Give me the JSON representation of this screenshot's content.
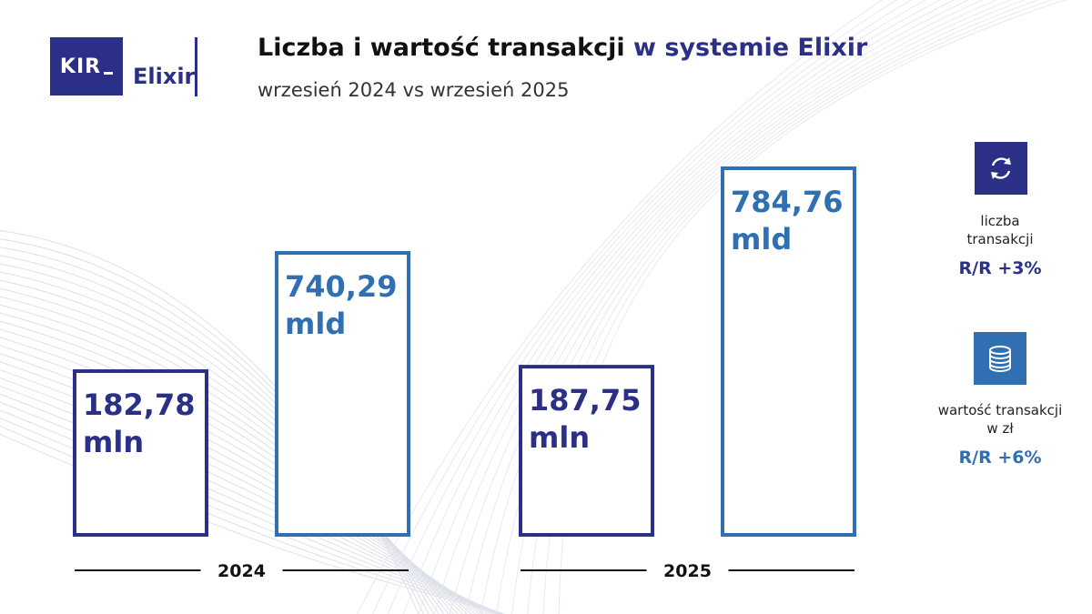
{
  "brand": {
    "logo_text": "KIR",
    "product": "Elixir",
    "navy": "#2b3086",
    "blue": "#2f6fb2"
  },
  "header": {
    "title_main": "Liczba i wartość transakcji",
    "title_accent": "w systemie Elixir",
    "subtitle": "wrzesień 2024 vs wrzesień 2025"
  },
  "chart_data": {
    "type": "bar",
    "categories": [
      "2024",
      "2025"
    ],
    "series": [
      {
        "name": "liczba transakcji",
        "values": [
          182.78,
          187.75
        ],
        "unit": "mln",
        "labels": [
          "182,78",
          "187,75"
        ],
        "color": "#2b3086"
      },
      {
        "name": "wartość transakcji w zł",
        "values": [
          740.29,
          784.76
        ],
        "unit": "mld",
        "labels": [
          "740,29",
          "784,76"
        ],
        "color": "#2f6fb2"
      }
    ],
    "title": "Liczba i wartość transakcji w systemie Elixir",
    "subtitle": "wrzesień 2024 vs wrzesień 2025"
  },
  "legend": [
    {
      "icon": "refresh-arrows-icon",
      "caption_line1": "liczba",
      "caption_line2": "transakcji",
      "change": "R/R +3%"
    },
    {
      "icon": "coins-stack-icon",
      "caption_line1": "wartość transakcji",
      "caption_line2": "w zł",
      "change": "R/R +6%"
    }
  ]
}
